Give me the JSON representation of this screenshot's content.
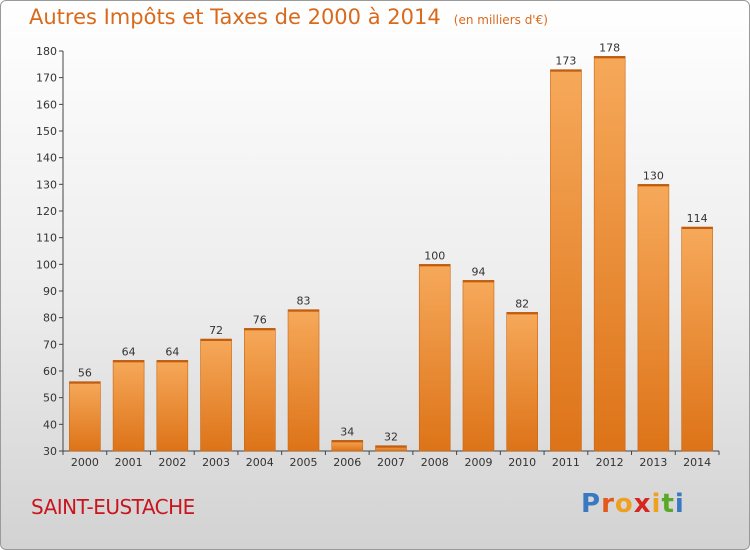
{
  "title": "Autres Impôts et Taxes de 2000 à 2014",
  "unit": "(en milliers d'€)",
  "commune": "SAINT-EUSTACHE",
  "brand": "Proxiti",
  "colors": {
    "title": "#d96a1c",
    "bar_light": "#f6a95a",
    "bar_dark": "#dd7318",
    "commune": "#c9151e",
    "brand_letters": [
      "#3a78c2",
      "#e2591b",
      "#f0a020",
      "#d7261e",
      "#f0a020",
      "#5aa828",
      "#3a78c2"
    ]
  },
  "chart_data": {
    "type": "bar",
    "categories": [
      "2000",
      "2001",
      "2002",
      "2003",
      "2004",
      "2005",
      "2006",
      "2007",
      "2008",
      "2009",
      "2010",
      "2011",
      "2012",
      "2013",
      "2014"
    ],
    "values": [
      56,
      64,
      64,
      72,
      76,
      83,
      34,
      32,
      100,
      94,
      82,
      173,
      178,
      130,
      114
    ],
    "ylim": [
      30,
      180
    ],
    "yticks": [
      30,
      40,
      50,
      60,
      70,
      80,
      90,
      100,
      110,
      120,
      130,
      140,
      150,
      160,
      170,
      180
    ],
    "grid": false,
    "data_labels": true
  }
}
